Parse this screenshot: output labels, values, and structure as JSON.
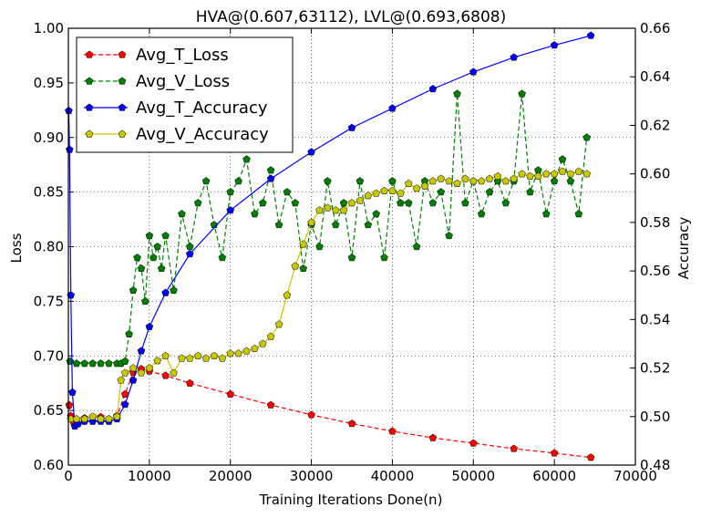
{
  "chart_data": {
    "type": "line",
    "title": "HVA@(0.607,63112), LVL@(0.693,6808)",
    "xlabel": "Training Iterations Done(n)",
    "ylabel_left": "Loss",
    "ylabel_right": "Accuracy",
    "xlim": [
      0,
      70000
    ],
    "ylim_left": [
      0.6,
      1.0
    ],
    "ylim_right": [
      0.48,
      0.66
    ],
    "x_ticks": [
      0,
      10000,
      20000,
      30000,
      40000,
      50000,
      60000,
      70000
    ],
    "x_tick_labels": [
      "0",
      "10000",
      "20000",
      "30000",
      "40000",
      "50000",
      "60000",
      "70000"
    ],
    "y_left_ticks": [
      0.6,
      0.65,
      0.7,
      0.75,
      0.8,
      0.85,
      0.9,
      0.95,
      1.0
    ],
    "y_left_tick_labels": [
      "0.60",
      "0.65",
      "0.70",
      "0.75",
      "0.80",
      "0.85",
      "0.90",
      "0.95",
      "1.00"
    ],
    "y_right_ticks": [
      0.48,
      0.5,
      0.52,
      0.54,
      0.56,
      0.58,
      0.6,
      0.62,
      0.64,
      0.66
    ],
    "y_right_tick_labels": [
      "0.48",
      "0.50",
      "0.52",
      "0.54",
      "0.56",
      "0.58",
      "0.60",
      "0.62",
      "0.64",
      "0.66"
    ],
    "grid": true,
    "legend_position": "top-left",
    "series": [
      {
        "name": "Avg_T_Loss",
        "axis": "left",
        "color": "#ff0000",
        "linestyle": "dashed",
        "marker": "pentagon",
        "x": [
          100,
          300,
          600,
          1000,
          2000,
          4000,
          6000,
          7000,
          8000,
          9000,
          10000,
          12000,
          15000,
          20000,
          25000,
          30000,
          35000,
          40000,
          45000,
          50000,
          55000,
          60000,
          64500
        ],
        "values": [
          0.655,
          0.645,
          0.64,
          0.642,
          0.643,
          0.644,
          0.645,
          0.665,
          0.685,
          0.688,
          0.686,
          0.682,
          0.675,
          0.665,
          0.655,
          0.646,
          0.638,
          0.631,
          0.625,
          0.62,
          0.615,
          0.611,
          0.607
        ]
      },
      {
        "name": "Avg_V_Loss",
        "axis": "left",
        "color": "#008000",
        "linestyle": "dashed",
        "marker": "pentagon",
        "x": [
          200,
          1000,
          2000,
          3000,
          4000,
          5000,
          6000,
          6500,
          7000,
          7500,
          8000,
          8500,
          9000,
          9500,
          10000,
          10500,
          11000,
          11500,
          12000,
          13000,
          14000,
          15000,
          16000,
          17000,
          18000,
          19000,
          20000,
          21000,
          22000,
          23000,
          24000,
          25000,
          26000,
          27000,
          28000,
          29000,
          30000,
          31000,
          32000,
          33000,
          34000,
          35000,
          36000,
          37000,
          38000,
          39000,
          40000,
          41000,
          42000,
          43000,
          44000,
          45000,
          46000,
          47000,
          48000,
          49000,
          50000,
          51000,
          52000,
          53000,
          54000,
          55000,
          56000,
          57000,
          58000,
          59000,
          60000,
          61000,
          62000,
          63000,
          64000
        ],
        "values": [
          0.695,
          0.693,
          0.693,
          0.693,
          0.693,
          0.693,
          0.693,
          0.693,
          0.695,
          0.72,
          0.76,
          0.79,
          0.78,
          0.75,
          0.81,
          0.79,
          0.8,
          0.78,
          0.81,
          0.76,
          0.83,
          0.8,
          0.84,
          0.86,
          0.82,
          0.79,
          0.85,
          0.86,
          0.88,
          0.83,
          0.84,
          0.87,
          0.82,
          0.85,
          0.84,
          0.78,
          0.82,
          0.8,
          0.86,
          0.82,
          0.84,
          0.79,
          0.86,
          0.82,
          0.83,
          0.79,
          0.86,
          0.84,
          0.84,
          0.8,
          0.86,
          0.84,
          0.85,
          0.81,
          0.94,
          0.84,
          0.86,
          0.83,
          0.85,
          0.86,
          0.84,
          0.86,
          0.94,
          0.85,
          0.87,
          0.83,
          0.86,
          0.88,
          0.86,
          0.83,
          0.9
        ]
      },
      {
        "name": "Avg_T_Accuracy",
        "axis": "right",
        "color": "#0000ff",
        "linestyle": "solid",
        "marker": "pentagon",
        "x": [
          50,
          150,
          300,
          500,
          800,
          1200,
          2000,
          3000,
          4000,
          5000,
          6000,
          7000,
          8000,
          9000,
          10000,
          12000,
          15000,
          20000,
          25000,
          30000,
          35000,
          40000,
          45000,
          50000,
          55000,
          60000,
          64500
        ],
        "values": [
          0.626,
          0.61,
          0.55,
          0.51,
          0.496,
          0.497,
          0.498,
          0.498,
          0.498,
          0.498,
          0.499,
          0.505,
          0.515,
          0.527,
          0.537,
          0.551,
          0.567,
          0.585,
          0.598,
          0.609,
          0.619,
          0.627,
          0.635,
          0.642,
          0.648,
          0.653,
          0.657
        ]
      },
      {
        "name": "Avg_V_Accuracy",
        "axis": "right",
        "color": "#c8c800",
        "linestyle": "solid",
        "marker": "pentagon",
        "x": [
          300,
          1000,
          2000,
          3000,
          4000,
          5000,
          6000,
          6500,
          7000,
          8000,
          9000,
          10000,
          11000,
          12000,
          13000,
          14000,
          15000,
          16000,
          17000,
          18000,
          19000,
          20000,
          21000,
          22000,
          23000,
          24000,
          25000,
          26000,
          27000,
          28000,
          29000,
          30000,
          31000,
          32000,
          33000,
          34000,
          35000,
          36000,
          37000,
          38000,
          39000,
          40000,
          41000,
          42000,
          43000,
          44000,
          45000,
          46000,
          47000,
          48000,
          49000,
          50000,
          51000,
          52000,
          53000,
          54000,
          55000,
          56000,
          57000,
          58000,
          59000,
          60000,
          61000,
          62000,
          63000,
          64000
        ],
        "values": [
          0.499,
          0.499,
          0.499,
          0.5,
          0.499,
          0.499,
          0.5,
          0.515,
          0.518,
          0.52,
          0.518,
          0.52,
          0.523,
          0.525,
          0.518,
          0.524,
          0.524,
          0.525,
          0.524,
          0.525,
          0.524,
          0.526,
          0.526,
          0.527,
          0.528,
          0.53,
          0.533,
          0.538,
          0.55,
          0.562,
          0.571,
          0.58,
          0.585,
          0.586,
          0.585,
          0.585,
          0.588,
          0.589,
          0.591,
          0.592,
          0.593,
          0.593,
          0.592,
          0.596,
          0.594,
          0.595,
          0.597,
          0.598,
          0.597,
          0.596,
          0.598,
          0.597,
          0.597,
          0.598,
          0.599,
          0.597,
          0.598,
          0.6,
          0.599,
          0.599,
          0.6,
          0.6,
          0.601,
          0.6,
          0.601,
          0.6
        ]
      }
    ]
  }
}
